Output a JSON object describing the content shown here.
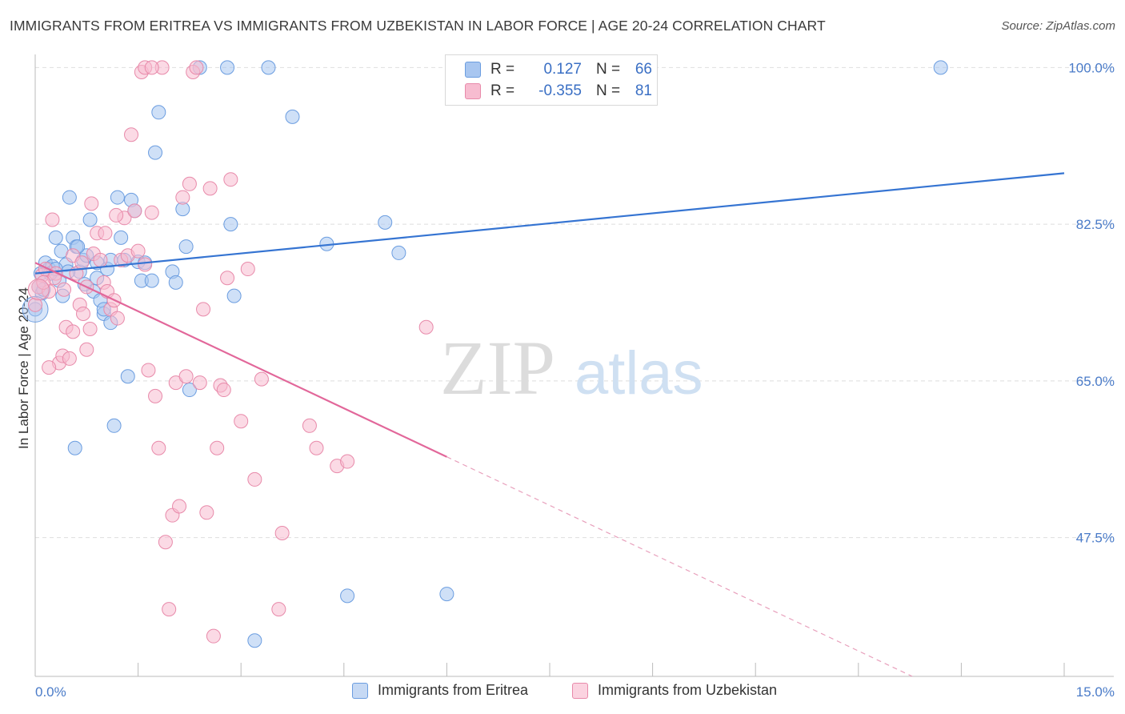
{
  "title": "IMMIGRANTS FROM ERITREA VS IMMIGRANTS FROM UZBEKISTAN IN LABOR FORCE | AGE 20-24 CORRELATION CHART",
  "source": "Source: ZipAtlas.com",
  "watermark": {
    "zip": "ZIP",
    "atlas": "atlas"
  },
  "legend": {
    "rows": [
      {
        "r_label": "R =",
        "r_value": "0.127",
        "n_label": "N =",
        "n_value": "66",
        "color": "#a8c6f0",
        "border": "#6b9de0"
      },
      {
        "r_label": "R =",
        "r_value": "-0.355",
        "n_label": "N =",
        "n_value": "81",
        "color": "#f7bcd0",
        "border": "#e88aaa"
      }
    ]
  },
  "bottom_legend": [
    {
      "label": "Immigrants from Eritrea",
      "color": "#a8c6f0",
      "border": "#6b9de0"
    },
    {
      "label": "Immigrants from Uzbekistan",
      "color": "#f7bcd0",
      "border": "#e88aaa"
    }
  ],
  "chart_data": {
    "type": "scatter",
    "title": "IMMIGRANTS FROM ERITREA VS IMMIGRANTS FROM UZBEKISTAN IN LABOR FORCE | AGE 20-24 CORRELATION CHART",
    "xlabel": "",
    "ylabel": "In Labor Force | Age 20-24",
    "xlim": [
      0,
      15
    ],
    "ylim": [
      32,
      102
    ],
    "x_tick_labels": [
      "0.0%",
      "15.0%"
    ],
    "y_ticks": [
      47.5,
      65.0,
      82.5,
      100.0
    ],
    "y_tick_labels": [
      "47.5%",
      "65.0%",
      "82.5%",
      "100.0%"
    ],
    "grid": true,
    "legend_position": "top-center",
    "series": [
      {
        "name": "Immigrants from Eritrea",
        "color": "#6b9de0",
        "fill": "#a8c6f0",
        "points": [
          [
            0.0,
            73.0
          ],
          [
            0.05,
            75.5
          ],
          [
            0.08,
            77.0
          ],
          [
            0.1,
            74.8
          ],
          [
            0.15,
            78.2
          ],
          [
            0.2,
            77.5
          ],
          [
            0.25,
            77.8
          ],
          [
            0.3,
            81.0
          ],
          [
            0.35,
            76.2
          ],
          [
            0.4,
            74.5
          ],
          [
            0.45,
            78.0
          ],
          [
            0.5,
            85.5
          ],
          [
            0.55,
            81.0
          ],
          [
            0.6,
            80.0
          ],
          [
            0.65,
            77.2
          ],
          [
            0.7,
            78.5
          ],
          [
            0.75,
            79.0
          ],
          [
            0.8,
            83.0
          ],
          [
            0.85,
            75.0
          ],
          [
            0.9,
            78.2
          ],
          [
            0.95,
            74.0
          ],
          [
            1.0,
            72.5
          ],
          [
            1.05,
            77.5
          ],
          [
            1.1,
            71.5
          ],
          [
            1.15,
            60.0
          ],
          [
            1.2,
            85.5
          ],
          [
            1.25,
            81.0
          ],
          [
            1.3,
            78.5
          ],
          [
            1.4,
            85.2
          ],
          [
            1.45,
            84.0
          ],
          [
            1.5,
            78.3
          ],
          [
            1.55,
            76.2
          ],
          [
            1.6,
            78.2
          ],
          [
            1.7,
            76.2
          ],
          [
            1.75,
            90.5
          ],
          [
            1.8,
            95.0
          ],
          [
            2.0,
            77.2
          ],
          [
            2.05,
            76.0
          ],
          [
            2.15,
            84.2
          ],
          [
            2.2,
            80.0
          ],
          [
            2.25,
            64.0
          ],
          [
            2.4,
            100.0
          ],
          [
            2.8,
            100.0
          ],
          [
            2.85,
            82.5
          ],
          [
            2.9,
            74.5
          ],
          [
            3.2,
            36.0
          ],
          [
            3.4,
            100.0
          ],
          [
            3.75,
            94.5
          ],
          [
            4.25,
            80.3
          ],
          [
            4.55,
            41.0
          ],
          [
            5.1,
            82.7
          ],
          [
            5.3,
            79.3
          ],
          [
            6.0,
            41.2
          ],
          [
            13.2,
            100.0
          ],
          [
            0.12,
            75.2
          ],
          [
            0.22,
            77.0
          ],
          [
            0.3,
            77.5
          ],
          [
            0.58,
            57.5
          ],
          [
            1.35,
            65.5
          ],
          [
            1.0,
            73.0
          ],
          [
            1.1,
            78.5
          ],
          [
            0.62,
            80.0
          ],
          [
            0.9,
            76.5
          ],
          [
            0.48,
            77.2
          ],
          [
            0.38,
            79.5
          ],
          [
            0.72,
            75.8
          ]
        ],
        "trend": {
          "x": [
            0,
            15
          ],
          "y": [
            77.0,
            88.2
          ]
        }
      },
      {
        "name": "Immigrants from Uzbekistan",
        "color": "#e88aaa",
        "fill": "#f7bcd0",
        "points": [
          [
            0.0,
            73.5
          ],
          [
            0.05,
            75.5
          ],
          [
            0.1,
            76.8
          ],
          [
            0.15,
            77.5
          ],
          [
            0.2,
            75.0
          ],
          [
            0.25,
            83.0
          ],
          [
            0.3,
            77.0
          ],
          [
            0.35,
            67.0
          ],
          [
            0.4,
            67.8
          ],
          [
            0.45,
            71.0
          ],
          [
            0.5,
            67.5
          ],
          [
            0.55,
            79.0
          ],
          [
            0.6,
            77.0
          ],
          [
            0.65,
            73.5
          ],
          [
            0.7,
            72.5
          ],
          [
            0.75,
            68.5
          ],
          [
            0.8,
            70.8
          ],
          [
            0.85,
            79.2
          ],
          [
            0.9,
            81.5
          ],
          [
            0.95,
            78.5
          ],
          [
            1.0,
            76.0
          ],
          [
            1.05,
            75.0
          ],
          [
            1.1,
            73.0
          ],
          [
            1.15,
            74.0
          ],
          [
            1.2,
            72.0
          ],
          [
            1.25,
            78.5
          ],
          [
            1.3,
            83.2
          ],
          [
            1.35,
            79.0
          ],
          [
            1.4,
            92.5
          ],
          [
            1.45,
            84.0
          ],
          [
            1.5,
            79.5
          ],
          [
            1.55,
            99.5
          ],
          [
            1.6,
            78.0
          ],
          [
            1.65,
            66.2
          ],
          [
            1.7,
            83.8
          ],
          [
            1.75,
            63.3
          ],
          [
            1.8,
            57.5
          ],
          [
            1.85,
            100.0
          ],
          [
            1.9,
            47.0
          ],
          [
            1.95,
            39.5
          ],
          [
            2.0,
            50.0
          ],
          [
            2.05,
            64.8
          ],
          [
            2.1,
            51.0
          ],
          [
            2.15,
            85.5
          ],
          [
            2.2,
            65.5
          ],
          [
            2.25,
            87.0
          ],
          [
            2.3,
            99.5
          ],
          [
            2.35,
            100.0
          ],
          [
            2.4,
            64.8
          ],
          [
            2.45,
            73.0
          ],
          [
            2.5,
            50.3
          ],
          [
            2.55,
            86.5
          ],
          [
            2.6,
            36.5
          ],
          [
            2.65,
            57.5
          ],
          [
            2.7,
            64.5
          ],
          [
            2.75,
            64.0
          ],
          [
            2.8,
            76.5
          ],
          [
            2.85,
            87.5
          ],
          [
            3.0,
            60.5
          ],
          [
            3.1,
            77.5
          ],
          [
            3.2,
            54.0
          ],
          [
            3.3,
            65.2
          ],
          [
            3.55,
            39.5
          ],
          [
            3.6,
            48.0
          ],
          [
            4.0,
            60.0
          ],
          [
            4.1,
            57.5
          ],
          [
            4.4,
            55.5
          ],
          [
            4.55,
            56.0
          ],
          [
            5.7,
            71.0
          ],
          [
            1.6,
            100.0
          ],
          [
            1.7,
            100.0
          ],
          [
            0.2,
            66.5
          ],
          [
            0.28,
            76.5
          ],
          [
            0.55,
            70.5
          ],
          [
            0.75,
            75.5
          ],
          [
            0.82,
            84.8
          ],
          [
            1.02,
            81.5
          ],
          [
            1.18,
            83.5
          ],
          [
            0.42,
            75.2
          ],
          [
            0.68,
            78.2
          ],
          [
            0.12,
            76.0
          ]
        ],
        "trend": {
          "x": [
            0,
            15
          ],
          "y": [
            78.2,
            24.0
          ],
          "solid_until": 6.0
        }
      }
    ]
  }
}
